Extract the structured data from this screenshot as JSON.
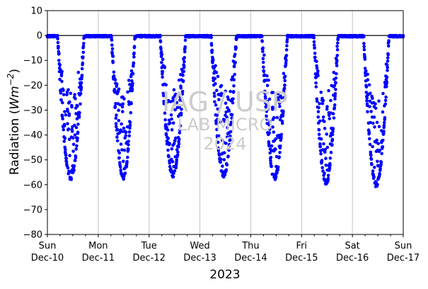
{
  "chart_data": {
    "type": "scatter",
    "ylabel": "Radiation (",
    "ylabel_unit": "Wm",
    "ylabel_exp": "−2",
    "ylabel_close": ")",
    "xlabel": "2023",
    "ylim": [
      -80,
      10
    ],
    "yticks": [
      -80,
      -70,
      -60,
      -50,
      -40,
      -30,
      -20,
      -10,
      0,
      10
    ],
    "ytick_labels": [
      "−80",
      "−70",
      "−60",
      "−50",
      "−40",
      "−30",
      "−20",
      "−10",
      "0",
      "10"
    ],
    "xlim": [
      0,
      7
    ],
    "xticks": [
      {
        "x": 0,
        "day": "Sun",
        "date": "Dec-10"
      },
      {
        "x": 1,
        "day": "Mon",
        "date": "Dec-11"
      },
      {
        "x": 2,
        "day": "Tue",
        "date": "Dec-12"
      },
      {
        "x": 3,
        "day": "Wed",
        "date": "Dec-13"
      },
      {
        "x": 4,
        "day": "Thu",
        "date": "Dec-14"
      },
      {
        "x": 5,
        "day": "Fri",
        "date": "Dec-15"
      },
      {
        "x": 6,
        "day": "Sat",
        "date": "Dec-16"
      },
      {
        "x": 7,
        "day": "Sun",
        "date": "Dec-17"
      }
    ],
    "grid": "vertical",
    "zero_line": true,
    "marker_color": "#0000ff",
    "nights": [
      {
        "start": 0,
        "end": 0.2
      },
      {
        "start": 0.72,
        "end": 1.26
      },
      {
        "start": 1.72,
        "end": 2.22
      },
      {
        "start": 2.72,
        "end": 3.22
      },
      {
        "start": 3.72,
        "end": 4.22
      },
      {
        "start": 4.72,
        "end": 5.24
      },
      {
        "start": 5.72,
        "end": 6.22
      },
      {
        "start": 6.72,
        "end": 7.0
      }
    ],
    "days": [
      {
        "start": 0.2,
        "end": 0.72,
        "min": -57
      },
      {
        "start": 1.26,
        "end": 1.72,
        "min": -57
      },
      {
        "start": 2.22,
        "end": 2.72,
        "min": -56
      },
      {
        "start": 3.22,
        "end": 3.72,
        "min": -56
      },
      {
        "start": 4.22,
        "end": 4.72,
        "min": -57
      },
      {
        "start": 5.24,
        "end": 5.72,
        "min": -59
      },
      {
        "start": 6.22,
        "end": 6.72,
        "min": -60
      }
    ]
  },
  "watermark": {
    "line1": "IAG / USP",
    "line2": "LAB MICRO",
    "line3": "2024"
  }
}
